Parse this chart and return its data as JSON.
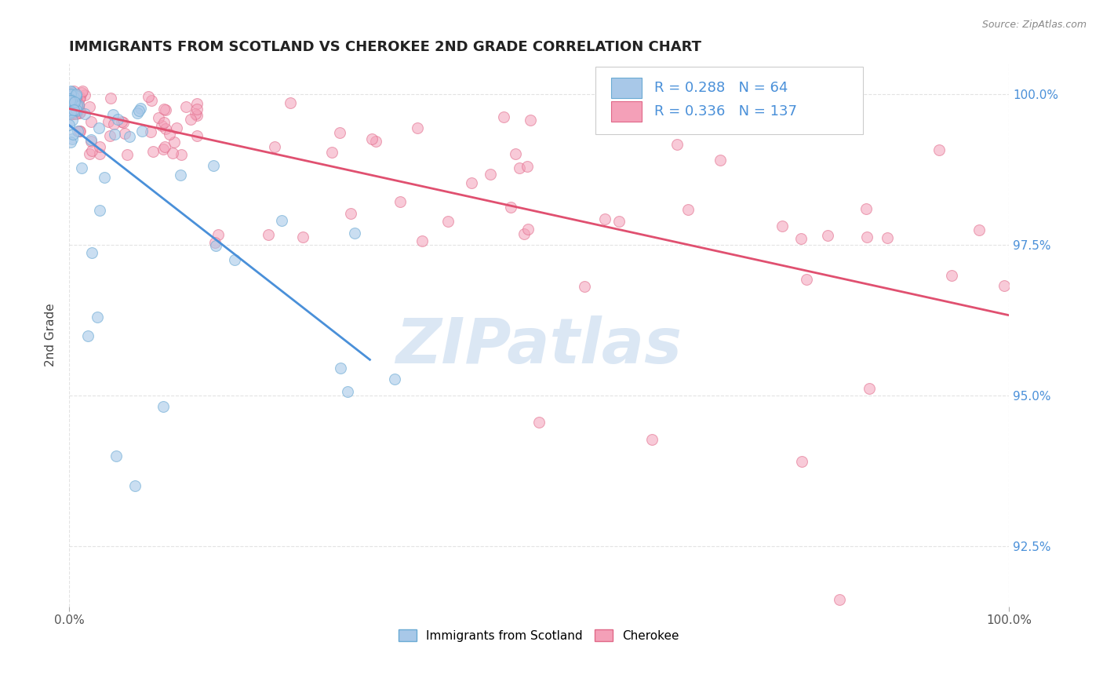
{
  "title": "IMMIGRANTS FROM SCOTLAND VS CHEROKEE 2ND GRADE CORRELATION CHART",
  "source": "Source: ZipAtlas.com",
  "ylabel": "2nd Grade",
  "x_tick_labels": [
    "0.0%",
    "100.0%"
  ],
  "xlim": [
    0.0,
    1.0
  ],
  "ylim": [
    0.915,
    1.005
  ],
  "y_ticks": [
    0.925,
    0.95,
    0.975,
    1.0
  ],
  "right_ytick_labels": [
    "100.0%",
    "97.5%",
    "95.0%",
    "92.5%"
  ],
  "right_ytick_values": [
    1.0,
    0.975,
    0.95,
    0.925
  ],
  "legend_entries": [
    {
      "label": "Immigrants from Scotland",
      "face_color": "#a8c8e8",
      "edge_color": "#6aaad4",
      "R": 0.288,
      "N": 64
    },
    {
      "label": "Cherokee",
      "face_color": "#f4a0b8",
      "edge_color": "#e06888",
      "R": 0.336,
      "N": 137
    }
  ],
  "scatter_blue": {
    "face_color": "#a8c8e8",
    "edge_color": "#6aaad4",
    "alpha": 0.6,
    "size": 100
  },
  "scatter_pink": {
    "face_color": "#f4a0b8",
    "edge_color": "#e06888",
    "alpha": 0.55,
    "size": 100
  },
  "trendline_blue": {
    "color": "#4a90d9",
    "linewidth": 2.0
  },
  "trendline_pink": {
    "color": "#e05070",
    "linewidth": 2.0
  },
  "watermark_text": "ZIPatlas",
  "watermark_color": "#ccddf0",
  "background_color": "#ffffff",
  "grid_color": "#e0e0e0",
  "title_color": "#222222",
  "axis_label_color": "#444444",
  "bottom_legend_labels": [
    "Immigrants from Scotland",
    "Cherokee"
  ],
  "bottom_legend_face_colors": [
    "#a8c8e8",
    "#f4a0b8"
  ],
  "bottom_legend_edge_colors": [
    "#6aaad4",
    "#e06888"
  ]
}
